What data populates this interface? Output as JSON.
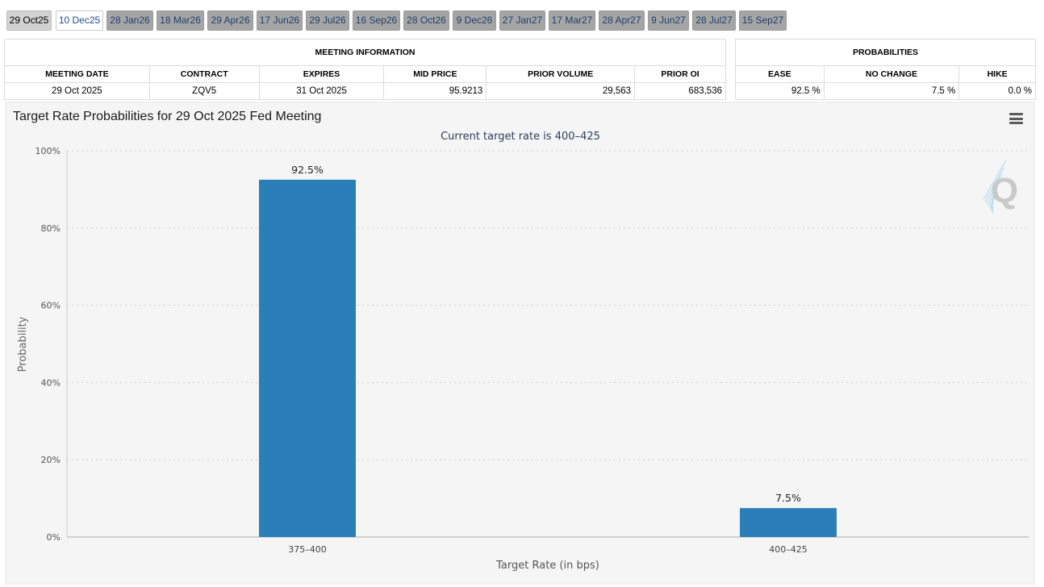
{
  "tabs": [
    {
      "label": "29 Oct25",
      "state": "active"
    },
    {
      "label": "10 Dec25",
      "state": "current"
    },
    {
      "label": "28 Jan26",
      "state": ""
    },
    {
      "label": "18 Mar26",
      "state": ""
    },
    {
      "label": "29 Apr26",
      "state": ""
    },
    {
      "label": "17 Jun26",
      "state": ""
    },
    {
      "label": "29 Jul26",
      "state": ""
    },
    {
      "label": "16 Sep26",
      "state": ""
    },
    {
      "label": "28 Oct26",
      "state": ""
    },
    {
      "label": "9 Dec26",
      "state": ""
    },
    {
      "label": "27 Jan27",
      "state": ""
    },
    {
      "label": "17 Mar27",
      "state": ""
    },
    {
      "label": "28 Apr27",
      "state": ""
    },
    {
      "label": "9 Jun27",
      "state": ""
    },
    {
      "label": "28 Jul27",
      "state": ""
    },
    {
      "label": "15 Sep27",
      "state": ""
    }
  ],
  "meeting_info": {
    "title": "MEETING INFORMATION",
    "headers": [
      "MEETING DATE",
      "CONTRACT",
      "EXPIRES",
      "MID PRICE",
      "PRIOR VOLUME",
      "PRIOR OI"
    ],
    "values": [
      "29 Oct 2025",
      "ZQV5",
      "31 Oct 2025",
      "95.9213",
      "29,563",
      "683,536"
    ]
  },
  "probabilities": {
    "title": "PROBABILITIES",
    "headers": [
      "EASE",
      "NO CHANGE",
      "HIKE"
    ],
    "values": [
      "92.5 %",
      "7.5 %",
      "0.0 %"
    ]
  },
  "chart": {
    "title": "Target Rate Probabilities for 29 Oct 2025 Fed Meeting",
    "menu_icon": "hamburger-menu-icon",
    "watermark": "Q",
    "bar_color": "#2b7fb8"
  },
  "chart_data": {
    "type": "bar",
    "title": "Target Rate Probabilities for 29 Oct 2025 Fed Meeting",
    "subtitle": "Current target rate is 400-425",
    "categories": [
      "375-400",
      "400-425"
    ],
    "values": [
      92.5,
      7.5
    ],
    "data_labels": [
      "92.5%",
      "7.5%"
    ],
    "xlabel": "Target Rate (in bps)",
    "ylabel": "Probability",
    "ylim": [
      0,
      100
    ],
    "yticks": [
      "0%",
      "20%",
      "40%",
      "60%",
      "80%",
      "100%"
    ],
    "grid": true
  }
}
